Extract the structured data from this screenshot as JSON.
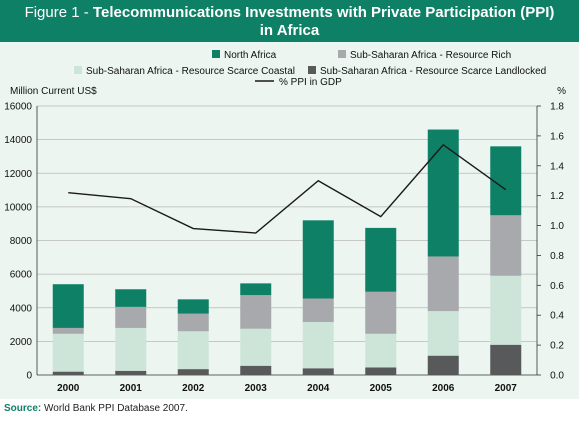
{
  "title": {
    "prefix": "Figure 1 - ",
    "main_line1": "Telecommunications Investments with Private Participation (PPI)",
    "main_line2": "in Africa"
  },
  "source": {
    "label": "Source:",
    "text": "World Bank PPI Database 2007."
  },
  "colors": {
    "title_bg": "#0d8066",
    "panel_bg": "#ecf5ef",
    "north_africa": "#0d8066",
    "resource_rich": "#a7a9ac",
    "scarce_coastal": "#cde5d8",
    "scarce_landlocked": "#58595b",
    "ppi_line": "#1a1a1a"
  },
  "chart_data": {
    "type": "bar",
    "stacked": true,
    "categories": [
      "2000",
      "2001",
      "2002",
      "2003",
      "2004",
      "2005",
      "2006",
      "2007"
    ],
    "series": [
      {
        "name": "Sub-Saharan Africa - Resource Scarce Landlocked",
        "values": [
          200,
          250,
          350,
          550,
          400,
          450,
          1150,
          1800
        ]
      },
      {
        "name": "Sub-Saharan Africa - Resource Scarce Coastal",
        "values": [
          2250,
          2550,
          2250,
          2200,
          2750,
          2000,
          2650,
          4100
        ]
      },
      {
        "name": "Sub-Saharan Africa - Resource Rich",
        "values": [
          350,
          1250,
          1050,
          2000,
          1400,
          2500,
          3250,
          3600
        ]
      },
      {
        "name": "North Africa",
        "values": [
          2600,
          1050,
          850,
          700,
          4650,
          3800,
          7550,
          4100
        ]
      }
    ],
    "line_series": {
      "name": "% PPI in GDP",
      "values": [
        1.22,
        1.18,
        0.98,
        0.95,
        1.3,
        1.06,
        1.54,
        1.24
      ]
    },
    "ylabel": "Million Current US$",
    "ylim": [
      0,
      16000
    ],
    "yticks": [
      "0",
      "2000",
      "4000",
      "6000",
      "8000",
      "10000",
      "12000",
      "14000",
      "16000"
    ],
    "y2label": "%",
    "y2lim": [
      0,
      1.8
    ],
    "y2ticks": [
      "0.0",
      "0.2",
      "0.4",
      "0.6",
      "0.8",
      "1.0",
      "1.2",
      "1.4",
      "1.6",
      "1.8"
    ],
    "legend": [
      {
        "label": "North Africa",
        "series": "North Africa"
      },
      {
        "label": "Sub-Saharan Africa - Resource Rich",
        "series": "Sub-Saharan Africa - Resource Rich"
      },
      {
        "label": "Sub-Saharan Africa - Resource Scarce Coastal",
        "series": "Sub-Saharan Africa - Resource Scarce Coastal"
      },
      {
        "label": "Sub-Saharan Africa - Resource Scarce Landlocked",
        "series": "Sub-Saharan Africa - Resource Scarce Landlocked"
      },
      {
        "label": "% PPI in GDP",
        "series": "line"
      }
    ],
    "legend_position": "top",
    "grid": true
  }
}
